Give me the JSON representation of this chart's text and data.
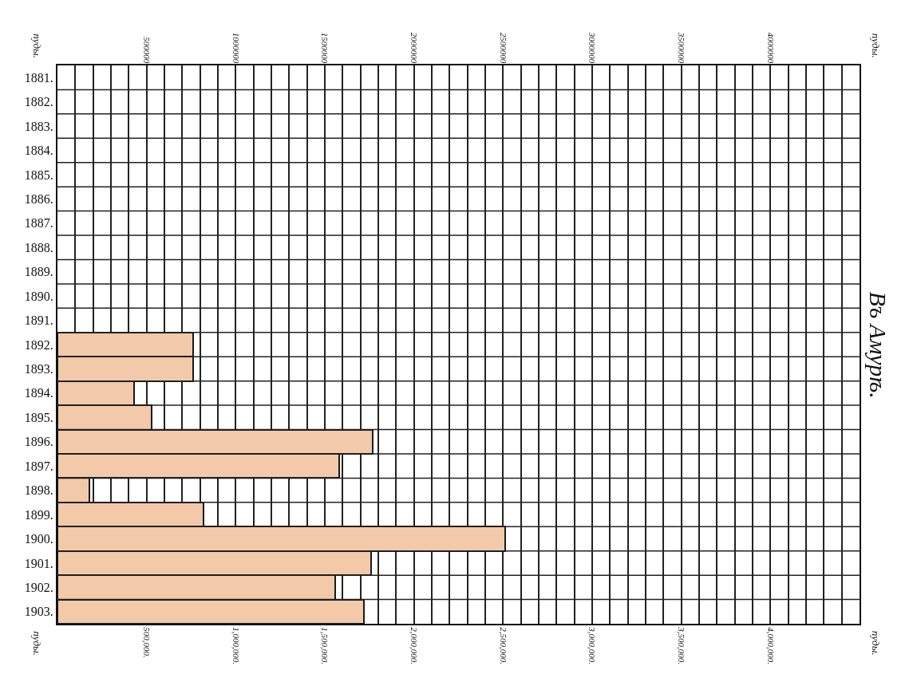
{
  "chart_data": {
    "type": "bar",
    "orientation": "horizontal",
    "title": "Въ Амурѣ.",
    "annotations": [
      "пуды.",
      "пуды.",
      "пуды.",
      "пуды."
    ],
    "categories": [
      "1881.",
      "1882.",
      "1883.",
      "1884.",
      "1885.",
      "1886.",
      "1887.",
      "1888.",
      "1889.",
      "1890.",
      "1891.",
      "1892.",
      "1893.",
      "1894.",
      "1895.",
      "1896.",
      "1897.",
      "1898.",
      "1899.",
      "1900.",
      "1901.",
      "1902.",
      "1903."
    ],
    "values": [
      null,
      null,
      null,
      null,
      null,
      null,
      null,
      null,
      null,
      null,
      null,
      760000,
      760000,
      430000,
      530000,
      1770000,
      1580000,
      180000,
      820000,
      2510000,
      1760000,
      1560000,
      1720000
    ],
    "color": "#f2c9a9",
    "xlim": [
      0,
      4500000
    ],
    "xticks": [
      {
        "value": 0,
        "label": null
      },
      {
        "value": 100000,
        "label": null
      },
      {
        "value": 200000,
        "label": null
      },
      {
        "value": 300000,
        "label": null
      },
      {
        "value": 400000,
        "label": null
      },
      {
        "value": 500000,
        "label": "500,000."
      },
      {
        "value": 600000,
        "label": null
      },
      {
        "value": 700000,
        "label": null
      },
      {
        "value": 800000,
        "label": null
      },
      {
        "value": 900000,
        "label": null
      },
      {
        "value": 1000000,
        "label": "1,000,000."
      },
      {
        "value": 1100000,
        "label": null
      },
      {
        "value": 1200000,
        "label": null
      },
      {
        "value": 1300000,
        "label": null
      },
      {
        "value": 1400000,
        "label": null
      },
      {
        "value": 1500000,
        "label": "1,500,000."
      },
      {
        "value": 1600000,
        "label": null
      },
      {
        "value": 1700000,
        "label": null
      },
      {
        "value": 1800000,
        "label": null
      },
      {
        "value": 1900000,
        "label": null
      },
      {
        "value": 2000000,
        "label": "2,000,000."
      },
      {
        "value": 2100000,
        "label": null
      },
      {
        "value": 2200000,
        "label": null
      },
      {
        "value": 2300000,
        "label": null
      },
      {
        "value": 2400000,
        "label": null
      },
      {
        "value": 2500000,
        "label": "2,500,000."
      },
      {
        "value": 2600000,
        "label": null
      },
      {
        "value": 2700000,
        "label": null
      },
      {
        "value": 2800000,
        "label": null
      },
      {
        "value": 2900000,
        "label": null
      },
      {
        "value": 3000000,
        "label": "3,000,000."
      },
      {
        "value": 3100000,
        "label": null
      },
      {
        "value": 3200000,
        "label": null
      },
      {
        "value": 3300000,
        "label": null
      },
      {
        "value": 3400000,
        "label": null
      },
      {
        "value": 3500000,
        "label": "3,500,000."
      },
      {
        "value": 3600000,
        "label": null
      },
      {
        "value": 3700000,
        "label": null
      },
      {
        "value": 3800000,
        "label": null
      },
      {
        "value": 3900000,
        "label": null
      },
      {
        "value": 4000000,
        "label": "4,000,000."
      },
      {
        "value": 4100000,
        "label": null
      },
      {
        "value": 4200000,
        "label": null
      },
      {
        "value": 4300000,
        "label": null
      },
      {
        "value": 4400000,
        "label": null
      },
      {
        "value": 4500000,
        "label": null
      }
    ],
    "x2lim": [
      0,
      4500000
    ],
    "x2ticks": [
      {
        "value": 500000,
        "label": "500000"
      },
      {
        "value": 1000000,
        "label": "1000000"
      },
      {
        "value": 1500000,
        "label": "1500000"
      },
      {
        "value": 2000000,
        "label": "2000000"
      },
      {
        "value": 2500000,
        "label": "2500000"
      },
      {
        "value": 3000000,
        "label": "3000000"
      },
      {
        "value": 3500000,
        "label": "3500000"
      },
      {
        "value": 4000000,
        "label": "4000000"
      }
    ],
    "grid": true,
    "legend": false
  }
}
